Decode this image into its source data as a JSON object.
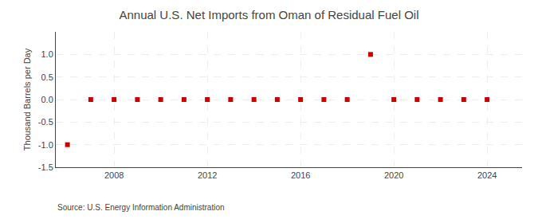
{
  "chart_data": {
    "type": "scatter",
    "title": "Annual U.S. Net Imports from Oman of Residual Fuel Oil",
    "ylabel": "Thousand Barrels per Day",
    "source": "Source: U.S. Energy Information Administration",
    "x": [
      2006,
      2007,
      2008,
      2009,
      2010,
      2011,
      2012,
      2013,
      2014,
      2015,
      2016,
      2017,
      2018,
      2019,
      2020,
      2021,
      2022,
      2023,
      2024
    ],
    "values": [
      -1,
      0,
      0,
      0,
      0,
      0,
      0,
      0,
      0,
      0,
      0,
      0,
      0,
      1,
      0,
      0,
      0,
      0,
      0
    ],
    "color": "#cc0000",
    "marker": "square",
    "xlim": [
      2005.5,
      2025.5
    ],
    "xticks": [
      2008,
      2012,
      2016,
      2020,
      2024
    ],
    "ylim": [
      -1.5,
      1.5
    ],
    "yticks": [
      -1.5,
      {
        "value": -1.0,
        "label": "-1.0"
      },
      -0.5,
      {
        "value": 0.0,
        "label": "0.0"
      },
      0.5,
      {
        "value": 1.0,
        "label": "1.0"
      }
    ],
    "grid": true
  }
}
